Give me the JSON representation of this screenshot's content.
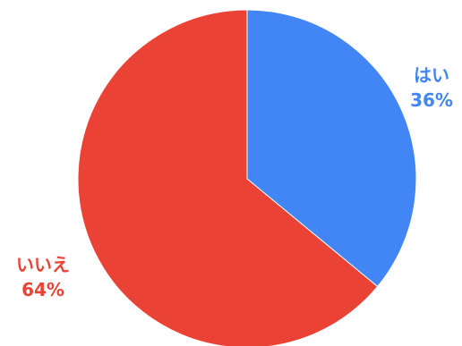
{
  "chart_data": {
    "type": "pie",
    "title": "",
    "slices": [
      {
        "label": "はい",
        "value": 36,
        "percent_label": "36%",
        "color": "#4285f4"
      },
      {
        "label": "いいえ",
        "value": 64,
        "percent_label": "64%",
        "color": "#ea4335"
      }
    ],
    "start_angle_deg": 0,
    "direction": "clockwise",
    "legend": "labels-outside-slices",
    "edge_color": "#ffffff"
  }
}
